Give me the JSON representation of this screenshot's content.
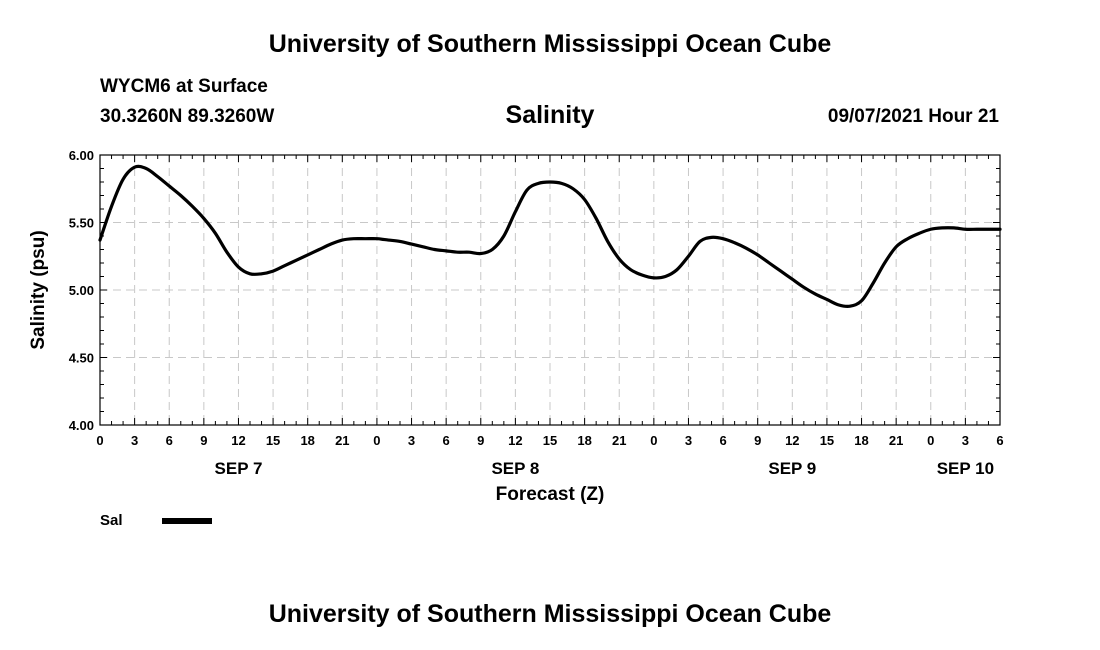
{
  "header": {
    "top_title": "University of Southern Mississippi Ocean Cube",
    "station_name": "WYCM6 at Surface",
    "station_coords": "30.3260N  89.3260W",
    "chart_title": "Salinity",
    "run_time": "09/07/2021 Hour 21"
  },
  "footer": {
    "bottom_title": "University of Southern Mississippi Ocean Cube"
  },
  "colors": {
    "line": "#000000",
    "grid": "#c8c8c8",
    "axis": "#000000"
  },
  "chart_data": {
    "type": "line",
    "title": "Salinity",
    "xlabel": "Forecast (Z)",
    "ylabel": "Salinity (psu)",
    "ylim": [
      4.0,
      6.0
    ],
    "xlim_hours": [
      0,
      78
    ],
    "y_ticks": [
      "4.00",
      "4.50",
      "5.00",
      "5.50",
      "6.00"
    ],
    "x_tick_hours": [
      0,
      3,
      6,
      9,
      12,
      15,
      18,
      21,
      24,
      27,
      30,
      33,
      36,
      39,
      42,
      45,
      48,
      51,
      54,
      57,
      60,
      63,
      66,
      69,
      72,
      75,
      78
    ],
    "x_tick_labels": [
      "0",
      "3",
      "6",
      "9",
      "12",
      "15",
      "18",
      "21",
      "0",
      "3",
      "6",
      "9",
      "12",
      "15",
      "18",
      "21",
      "0",
      "3",
      "6",
      "9",
      "12",
      "15",
      "18",
      "21",
      "0",
      "3",
      "6"
    ],
    "day_labels": [
      {
        "hour": 12,
        "label": "SEP 7"
      },
      {
        "hour": 36,
        "label": "SEP 8"
      },
      {
        "hour": 60,
        "label": "SEP 9"
      },
      {
        "hour": 75,
        "label": "SEP 10"
      }
    ],
    "grid": true,
    "legend": [
      {
        "name": "Sal",
        "placement": "bottom-left"
      }
    ],
    "series": [
      {
        "name": "Sal",
        "x": [
          0,
          1,
          2,
          3,
          4,
          5,
          6,
          7,
          8,
          9,
          10,
          11,
          12,
          13,
          14,
          15,
          16,
          17,
          18,
          19,
          20,
          21,
          22,
          23,
          24,
          25,
          26,
          27,
          28,
          29,
          30,
          31,
          32,
          33,
          34,
          35,
          36,
          37,
          38,
          39,
          40,
          41,
          42,
          43,
          44,
          45,
          46,
          47,
          48,
          49,
          50,
          51,
          52,
          53,
          54,
          55,
          56,
          57,
          58,
          59,
          60,
          61,
          62,
          63,
          64,
          65,
          66,
          67,
          68,
          69,
          70,
          71,
          72,
          73,
          74,
          75,
          76,
          77,
          78
        ],
        "values": [
          5.37,
          5.62,
          5.82,
          5.91,
          5.9,
          5.84,
          5.77,
          5.7,
          5.62,
          5.53,
          5.42,
          5.28,
          5.17,
          5.12,
          5.12,
          5.14,
          5.18,
          5.22,
          5.26,
          5.3,
          5.34,
          5.37,
          5.38,
          5.38,
          5.38,
          5.37,
          5.36,
          5.34,
          5.32,
          5.3,
          5.29,
          5.28,
          5.28,
          5.27,
          5.3,
          5.4,
          5.58,
          5.74,
          5.79,
          5.8,
          5.79,
          5.75,
          5.67,
          5.53,
          5.36,
          5.23,
          5.15,
          5.11,
          5.09,
          5.1,
          5.15,
          5.25,
          5.36,
          5.39,
          5.38,
          5.35,
          5.31,
          5.26,
          5.2,
          5.14,
          5.08,
          5.02,
          4.97,
          4.93,
          4.89,
          4.88,
          4.92,
          5.05,
          5.2,
          5.32,
          5.38,
          5.42,
          5.45,
          5.46,
          5.46,
          5.45,
          5.45,
          5.45,
          5.45
        ]
      }
    ]
  }
}
